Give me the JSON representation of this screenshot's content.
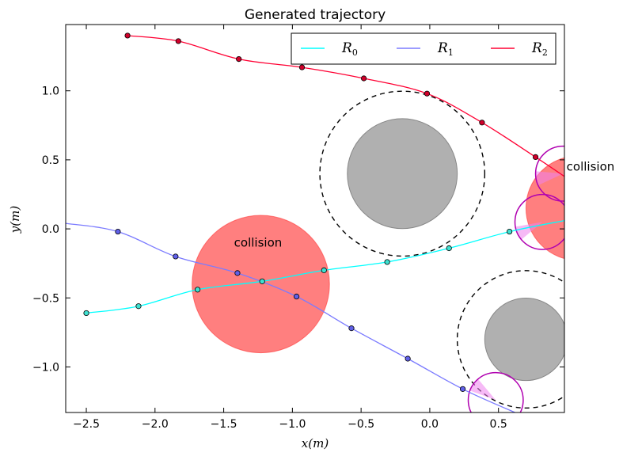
{
  "chart_data": {
    "type": "line",
    "title": "Generated trajectory",
    "xlabel": "x(m)",
    "ylabel": "y(m)",
    "xlim": [
      -2.65,
      0.98
    ],
    "ylim": [
      -1.33,
      1.48
    ],
    "x_ticks": [
      -2.5,
      -2.0,
      -1.5,
      -1.0,
      -0.5,
      0.0,
      0.5
    ],
    "x_tick_labels": [
      "−2.5",
      "−2.0",
      "−1.5",
      "−1.0",
      "−0.5",
      "0.0",
      "0.5"
    ],
    "y_ticks": [
      1.0,
      0.5,
      0.0,
      -0.5,
      -1.0
    ],
    "y_tick_labels": [
      "1.0",
      "0.5",
      "0.0",
      "−0.5",
      "−1.0"
    ],
    "grid": false,
    "legend_position": "top-right",
    "series": [
      {
        "name": "R",
        "subscript": "0",
        "color": "#00ffff",
        "marker_color": "#40e0d0",
        "points": [
          [
            -2.5,
            -0.61
          ],
          [
            -2.12,
            -0.56
          ],
          [
            -1.69,
            -0.44
          ],
          [
            -1.22,
            -0.38
          ],
          [
            -0.77,
            -0.3
          ],
          [
            -0.31,
            -0.24
          ],
          [
            0.14,
            -0.14
          ],
          [
            0.58,
            -0.02
          ]
        ],
        "line_extra": [
          [
            0.98,
            0.06
          ]
        ]
      },
      {
        "name": "R",
        "subscript": "1",
        "color": "#7b7bff",
        "marker_color": "#6060e8",
        "line_start": [
          [
            -2.65,
            0.04
          ]
        ],
        "points": [
          [
            -2.27,
            -0.02
          ],
          [
            -1.85,
            -0.2
          ],
          [
            -1.4,
            -0.32
          ],
          [
            -0.97,
            -0.49
          ],
          [
            -0.57,
            -0.72
          ],
          [
            -0.16,
            -0.94
          ],
          [
            0.24,
            -1.16
          ]
        ],
        "line_extra": [
          [
            0.62,
            -1.33
          ]
        ]
      },
      {
        "name": "R",
        "subscript": "2",
        "color": "#ff0033",
        "marker_color": "#d0002a",
        "points": [
          [
            -2.2,
            1.4
          ],
          [
            -1.83,
            1.36
          ],
          [
            -1.39,
            1.23
          ],
          [
            -0.93,
            1.17
          ],
          [
            -0.48,
            1.09
          ],
          [
            -0.02,
            0.98
          ],
          [
            0.38,
            0.77
          ],
          [
            0.77,
            0.52
          ]
        ],
        "line_extra": [
          [
            0.98,
            0.38
          ]
        ]
      }
    ],
    "obstacles": [
      {
        "kind": "gray-disc",
        "center": [
          -0.2,
          0.4
        ],
        "radius": 0.4,
        "color": "#b0b0b0"
      },
      {
        "kind": "safety-circle",
        "center": [
          -0.2,
          0.4
        ],
        "radius": 0.6
      },
      {
        "kind": "gray-disc",
        "center": [
          0.7,
          -0.8
        ],
        "radius": 0.3,
        "color": "#b0b0b0"
      },
      {
        "kind": "safety-circle",
        "center": [
          0.7,
          -0.8
        ],
        "radius": 0.5
      }
    ],
    "collision_regions": [
      {
        "center": [
          -1.23,
          -0.4
        ],
        "radius": 0.5,
        "color": "#ff0000"
      },
      {
        "center": [
          1.08,
          0.15
        ],
        "radius": 0.38,
        "color": "#ff0000"
      }
    ],
    "sensor_circles": [
      {
        "center": [
          0.97,
          0.4
        ],
        "radius": 0.2,
        "wedge_from": 175,
        "wedge_to": 205
      },
      {
        "center": [
          0.82,
          0.05
        ],
        "radius": 0.2,
        "wedge_from": 190,
        "wedge_to": 220
      },
      {
        "center": [
          0.48,
          -1.24
        ],
        "radius": 0.2,
        "wedge_from": 130,
        "wedge_to": 160
      }
    ],
    "annotations": [
      {
        "text": "collision",
        "x": -1.25,
        "y": -0.1
      },
      {
        "text": "collision",
        "x": 1.17,
        "y": 0.45
      }
    ]
  }
}
